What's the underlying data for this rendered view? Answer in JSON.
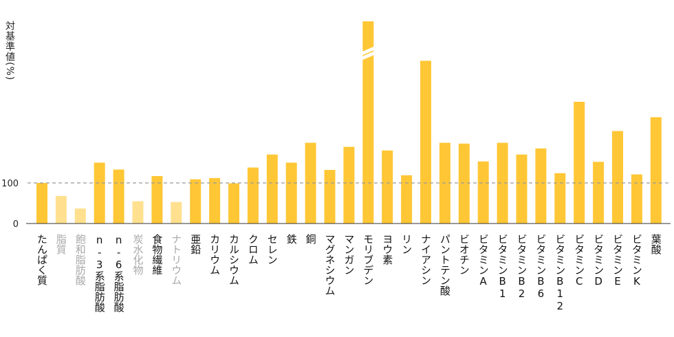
{
  "chart_data": {
    "type": "bar",
    "ylabel": "対基準値(%)",
    "yticks": [
      0,
      100
    ],
    "reference_line": 100,
    "ylim": [
      0,
      500
    ],
    "colors": {
      "main": "#ffc736",
      "muted": "#ffe08f",
      "refline": "#999999"
    },
    "categories": [
      "たんぱく質",
      "脂質",
      "飽和脂肪酸",
      "n-3系脂肪酸",
      "n-6系脂肪酸",
      "炭水化物",
      "食物繊維",
      "ナトリウム",
      "亜鉛",
      "カリウム",
      "カルシウム",
      "クロム",
      "セレン",
      "鉄",
      "銅",
      "マグネシウム",
      "マンガン",
      "モリブデン",
      "ヨウ素",
      "リン",
      "ナイアシン",
      "パントテン酸",
      "ビオチン",
      "ビタミンA",
      "ビタミンB1",
      "ビタミンB2",
      "ビタミンB6",
      "ビタミンB12",
      "ビタミンC",
      "ビタミンD",
      "ビタミンE",
      "ビタミンK",
      "葉酸"
    ],
    "values": [
      100,
      68,
      37,
      150,
      133,
      55,
      117,
      53,
      109,
      112,
      99,
      138,
      170,
      150,
      199,
      132,
      189,
      500,
      180,
      119,
      401,
      199,
      197,
      153,
      199,
      170,
      185,
      124,
      300,
      152,
      228,
      121,
      262
    ],
    "muted": [
      false,
      true,
      true,
      false,
      false,
      true,
      false,
      true,
      false,
      false,
      false,
      false,
      false,
      false,
      false,
      false,
      false,
      false,
      false,
      false,
      false,
      false,
      false,
      false,
      false,
      false,
      false,
      false,
      false,
      false,
      false,
      false,
      false
    ],
    "broken": [
      false,
      false,
      false,
      false,
      false,
      false,
      false,
      false,
      false,
      false,
      false,
      false,
      false,
      false,
      false,
      false,
      false,
      true,
      false,
      false,
      false,
      false,
      false,
      false,
      false,
      false,
      false,
      false,
      false,
      false,
      false,
      false,
      false
    ]
  }
}
